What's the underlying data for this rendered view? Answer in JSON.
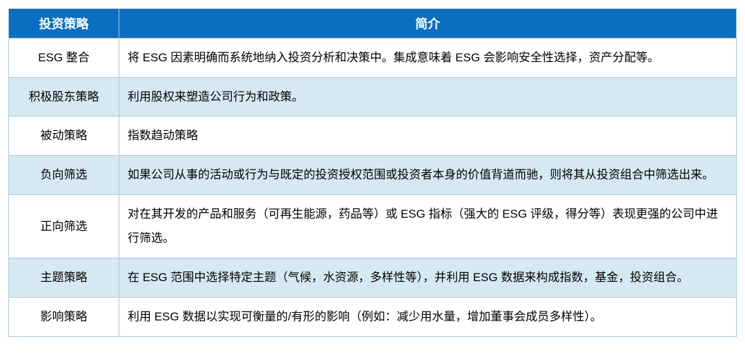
{
  "table": {
    "header_bg": "#0a6fc2",
    "header_fg": "#ffffff",
    "border_color": "#a8c9dc",
    "row_alt_bg": "#d6e9f2",
    "row_bg": "#ffffff",
    "columns": [
      "投资策略",
      "简介"
    ],
    "rows": [
      {
        "strategy": "ESG 整合",
        "desc": "将 ESG 因素明确而系统地纳入投资分析和决策中。集成意味着 ESG 会影响安全性选择，资产分配等。"
      },
      {
        "strategy": "积极股东策略",
        "desc": "利用股权来塑造公司行为和政策。"
      },
      {
        "strategy": "被动策略",
        "desc": "指数趋动策略"
      },
      {
        "strategy": "负向筛选",
        "desc": "如果公司从事的活动或行为与既定的投资授权范围或投资者本身的价值背道而驰，则将其从投资组合中筛选出来。"
      },
      {
        "strategy": "正向筛选",
        "desc": "对在其开发的产品和服务（可再生能源，药品等）或 ESG 指标（强大的 ESG 评级，得分等）表现更强的公司中进行筛选。"
      },
      {
        "strategy": "主题策略",
        "desc": "在 ESG 范围中选择特定主题（气候，水资源，多样性等），并利用 ESG 数据来构成指数，基金，投资组合。"
      },
      {
        "strategy": "影响策略",
        "desc": "利用 ESG 数据以实现可衡量的/有形的影响（例如：减少用水量，增加董事会成员多样性）。"
      }
    ]
  }
}
